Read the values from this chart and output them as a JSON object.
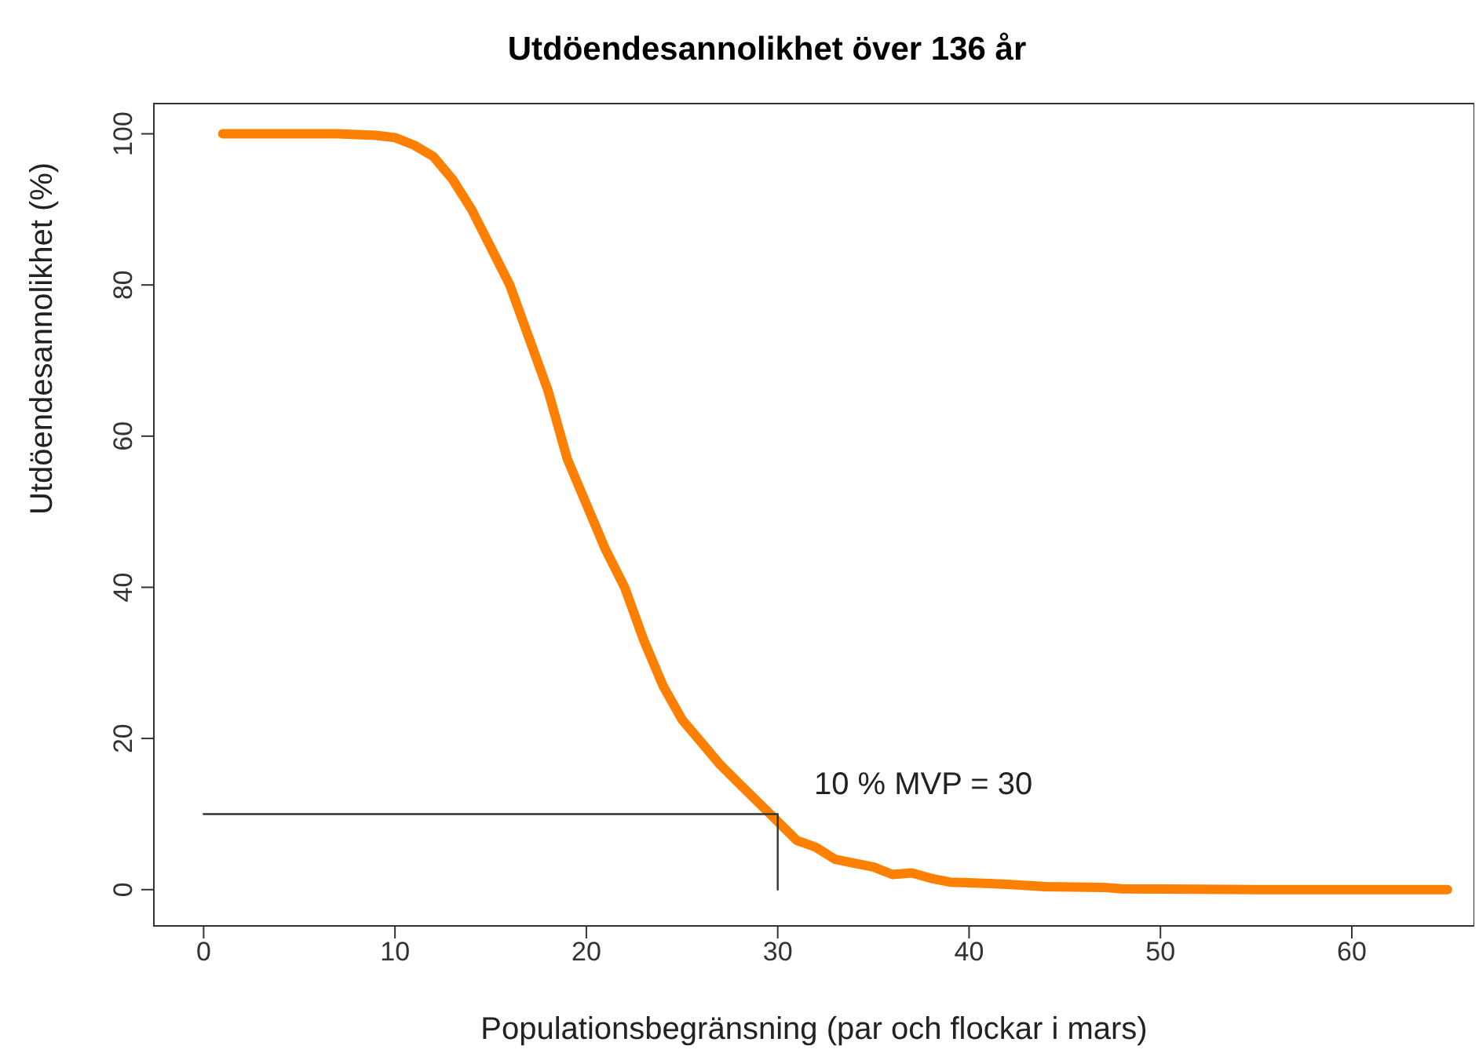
{
  "chart_data": {
    "type": "line",
    "title": "Utdöendesannolikhet över 136 år",
    "xlabel": "Populationsbegränsning (par och flockar i mars)",
    "ylabel": "Utdöendesannolikhet (%)",
    "xlim": [
      -2.6,
      66.4
    ],
    "ylim": [
      -4.8,
      104
    ],
    "xticks": [
      0,
      10,
      20,
      30,
      40,
      50,
      60
    ],
    "yticks": [
      0,
      20,
      40,
      60,
      80,
      100
    ],
    "grid": false,
    "marker": "none",
    "line_style": "solid",
    "series": [
      {
        "color": "#ff8000",
        "x": [
          1,
          7,
          9,
          10,
          11,
          12,
          13,
          14,
          15,
          16,
          17,
          18,
          19,
          20,
          21,
          22,
          23,
          24,
          25,
          26,
          27,
          28,
          29,
          30,
          31,
          32,
          33,
          34,
          35,
          36,
          37,
          38,
          39,
          40,
          42,
          44,
          47,
          48,
          55,
          65
        ],
        "values": [
          100,
          100,
          99.8,
          99.5,
          98.5,
          97,
          94,
          90,
          85,
          80,
          73,
          66,
          57,
          51,
          45,
          40,
          33,
          27,
          22.5,
          19.5,
          16.5,
          14,
          11.5,
          9,
          6.5,
          5.6,
          4,
          3.5,
          3,
          2,
          2.2,
          1.5,
          1,
          0.9,
          0.7,
          0.4,
          0.3,
          0.1,
          0,
          0
        ]
      },
      {
        "color": "#333333",
        "x": [
          0,
          30,
          30
        ],
        "values": [
          10,
          10,
          0
        ]
      }
    ],
    "annotations": [
      "10 % MVP = 30"
    ]
  }
}
